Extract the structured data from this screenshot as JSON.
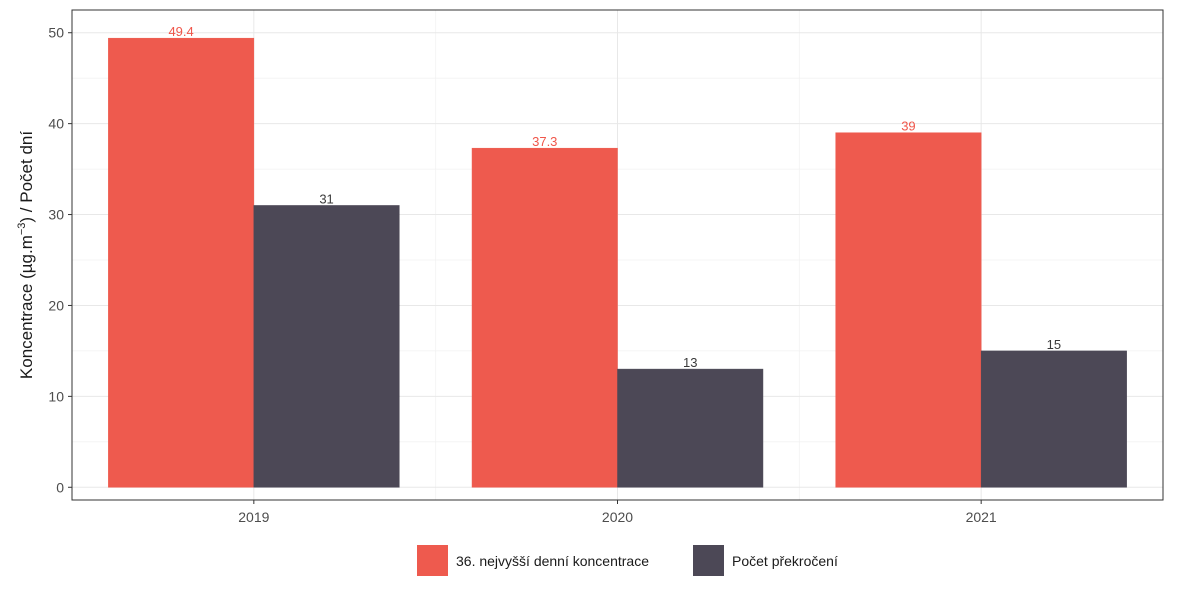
{
  "chart_data": {
    "type": "bar",
    "categories": [
      "2019",
      "2020",
      "2021"
    ],
    "series": [
      {
        "name": "36. nejvyšší denní koncentrace",
        "values": [
          49.4,
          37.3,
          39
        ],
        "labels": [
          "49.4",
          "37.3",
          "39"
        ],
        "color": "#ee5a4e",
        "label_color": "#f0564a"
      },
      {
        "name": "Počet překročení",
        "values": [
          31,
          13,
          15
        ],
        "labels": [
          "31",
          "13",
          "15"
        ],
        "color": "#4c4856",
        "label_color": "#3a3a3a"
      }
    ],
    "ylabel_main": "Koncentrace (µg.m",
    "ylabel_sup": "−3",
    "ylabel_tail": ") / Počet dní",
    "yticks": [
      "0",
      "10",
      "20",
      "30",
      "40",
      "50"
    ],
    "ylim": [
      -1.4,
      52.5
    ],
    "grid": true,
    "legend_position": "bottom"
  }
}
